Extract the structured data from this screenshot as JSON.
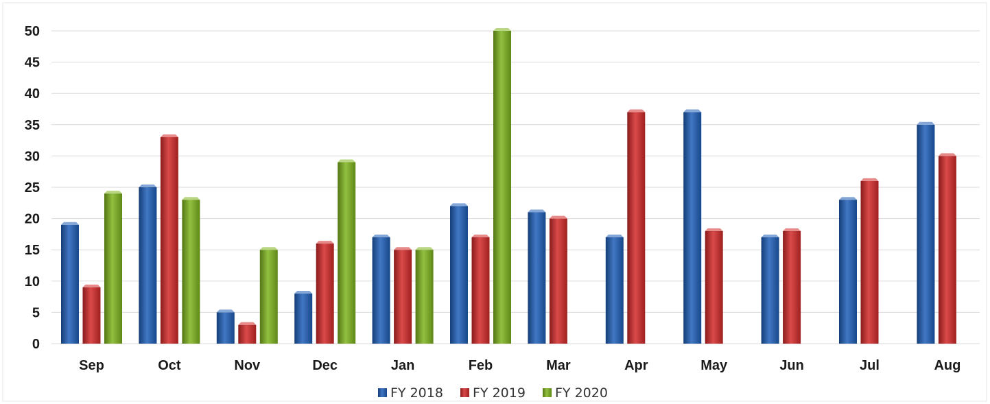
{
  "chart_data": {
    "type": "bar",
    "categories": [
      "Sep",
      "Oct",
      "Nov",
      "Dec",
      "Jan",
      "Feb",
      "Mar",
      "Apr",
      "May",
      "Jun",
      "Jul",
      "Aug"
    ],
    "series": [
      {
        "name": "FY 2018",
        "color": "#1f5fb8",
        "values": [
          19,
          25,
          5,
          8,
          17,
          22,
          21,
          17,
          37,
          17,
          23,
          35
        ]
      },
      {
        "name": "FY 2019",
        "color": "#d42a2a",
        "values": [
          9,
          33,
          3,
          16,
          15,
          17,
          20,
          37,
          18,
          18,
          26,
          30
        ]
      },
      {
        "name": "FY 2020",
        "color": "#7fb51e",
        "values": [
          24,
          23,
          15,
          29,
          15,
          50,
          null,
          null,
          null,
          null,
          null,
          null
        ]
      }
    ],
    "ylim": [
      0,
      50
    ],
    "yticks": [
      "0",
      "5",
      "10",
      "15",
      "20",
      "25",
      "30",
      "35",
      "40",
      "45",
      "50"
    ],
    "grid": true,
    "legend": "bottom-center"
  }
}
